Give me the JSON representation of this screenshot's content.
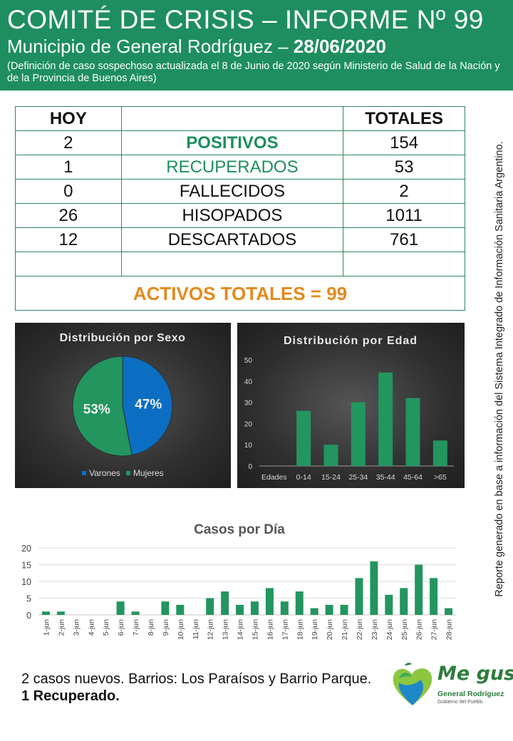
{
  "header": {
    "title": "COMITÉ DE CRISIS – INFORME Nº 99",
    "municipio": "Municipio de General Rodríguez –",
    "date": "28/06/2020",
    "note": "(Definición de caso sospechoso actualizada el 8 de Junio de 2020 según Ministerio de Salud de la Nación y de la Provincia de Buenos Aires)"
  },
  "table": {
    "col_hoy": "HOY",
    "col_totales": "TOTALES",
    "rows": [
      {
        "hoy": "2",
        "label": "POSITIVOS",
        "total": "154"
      },
      {
        "hoy": "1",
        "label": "RECUPERADOS",
        "total": "53"
      },
      {
        "hoy": "0",
        "label": "FALLECIDOS",
        "total": "2"
      },
      {
        "hoy": "26",
        "label": "HISOPADOS",
        "total": "1011"
      },
      {
        "hoy": "12",
        "label": "DESCARTADOS",
        "total": "761"
      }
    ],
    "activos": "ACTIVOS TOTALES = 99"
  },
  "colors": {
    "green": "#1e8e5e",
    "blue": "#0b6ec2",
    "bar_green": "#23955f",
    "orange": "#e38a1c"
  },
  "chart_data": [
    {
      "type": "pie",
      "title": "Distribución por Sexo",
      "labels": [
        "Varones",
        "Mujeres"
      ],
      "values": [
        47,
        53
      ],
      "value_labels": [
        "47%",
        "53%"
      ],
      "legend": "bottom"
    },
    {
      "type": "bar",
      "title": "Distribución por Edad",
      "xlabel": "Edades",
      "categories": [
        "0-14",
        "15-24",
        "25-34",
        "35-44",
        "45-64",
        ">65"
      ],
      "values": [
        26,
        10,
        30,
        44,
        32,
        12
      ],
      "ylim": [
        0,
        50
      ],
      "yticks": [
        0,
        10,
        20,
        30,
        40,
        50
      ]
    },
    {
      "type": "bar",
      "title": "Casos por Día",
      "categories": [
        "1-jun",
        "2-jun",
        "3-jun",
        "4-jun",
        "5-jun",
        "6-jun",
        "7-jun",
        "8-jun",
        "9-jun",
        "10-jun",
        "11-jun",
        "12-jun",
        "13-jun",
        "14-jun",
        "15-jun",
        "16-jun",
        "17-jun",
        "18-jun",
        "19-jun",
        "20-jun",
        "21-jun",
        "22-jun",
        "23-jun",
        "24-jun",
        "25-jun",
        "26-jun",
        "27-jun",
        "28-jun"
      ],
      "values": [
        1,
        1,
        0,
        0,
        0,
        4,
        1,
        0,
        4,
        3,
        0,
        5,
        7,
        3,
        4,
        8,
        4,
        7,
        2,
        3,
        3,
        11,
        16,
        6,
        8,
        15,
        11,
        2
      ],
      "ylim": [
        0,
        20
      ],
      "yticks": [
        0,
        5,
        10,
        15,
        20
      ],
      "grid": true
    }
  ],
  "side_note": "Reporte generado en base a información del Sistema Integrado de Información Sanitaria Argentino.",
  "footer": {
    "line1": "2 casos nuevos. Barrios: Los Paraísos y Barrio Parque.",
    "line2": "1 Recuperado."
  },
  "logo": {
    "line1": "Me gusta",
    "line2": "General Rodríguez",
    "line3": "Gobierno del Pueblo"
  }
}
